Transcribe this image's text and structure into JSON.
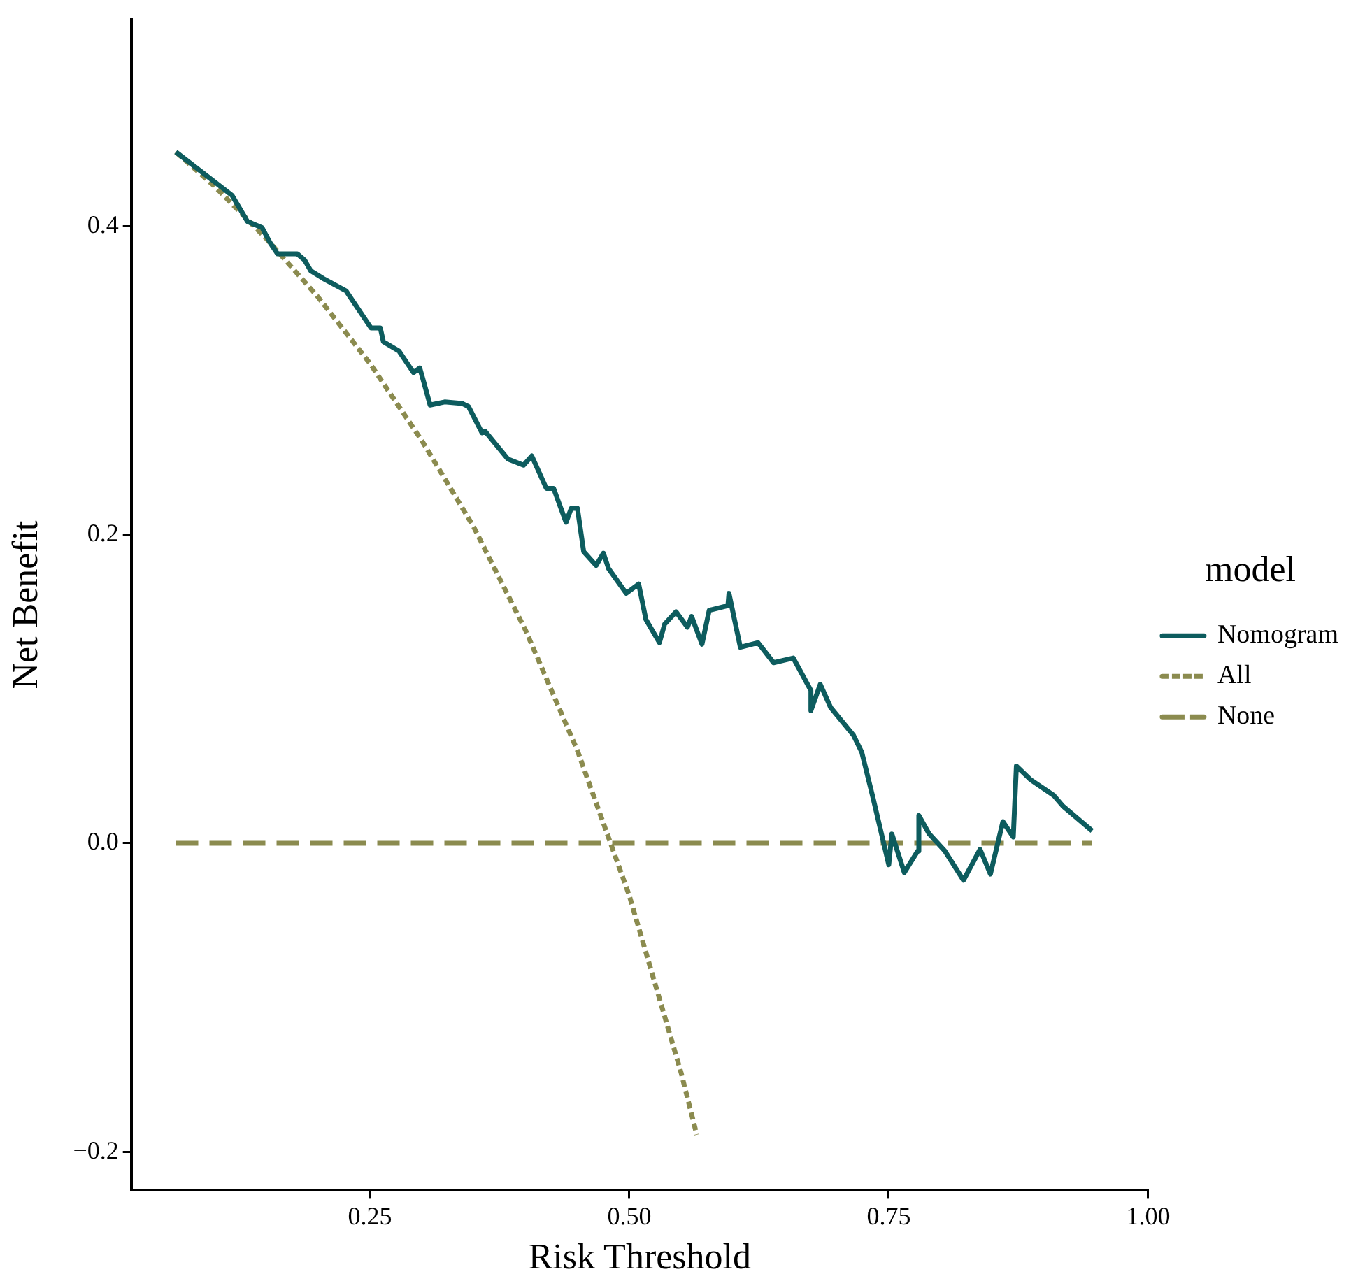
{
  "chart_data": {
    "type": "line",
    "xlabel": "Risk Threshold",
    "ylabel": "Net Benefit",
    "legend_title": "model",
    "legend": "right",
    "grid": false,
    "marker": "none",
    "xlim": [
      0.02,
      1.0
    ],
    "ylim": [
      -0.225,
      0.534
    ],
    "xticks": [
      {
        "value": 0.25,
        "label": "0.25"
      },
      {
        "value": 0.5,
        "label": "0.50"
      },
      {
        "value": 0.75,
        "label": "0.75"
      },
      {
        "value": 1.0,
        "label": "1.00"
      }
    ],
    "yticks": [
      {
        "value": -0.2,
        "label": "−0.2"
      },
      {
        "value": 0,
        "label": "0.0"
      },
      {
        "value": 0.2,
        "label": "0.2"
      },
      {
        "value": 0.4,
        "label": "0.4"
      }
    ],
    "series": [
      {
        "name": "Nomogram",
        "color": "#0d5c5e",
        "line_style": "solid",
        "x": [
          0.063,
          0.117,
          0.132,
          0.146,
          0.154,
          0.161,
          0.18,
          0.187,
          0.193,
          0.205,
          0.227,
          0.251,
          0.26,
          0.263,
          0.278,
          0.292,
          0.298,
          0.301,
          0.308,
          0.322,
          0.339,
          0.345,
          0.358,
          0.361,
          0.383,
          0.398,
          0.406,
          0.42,
          0.427,
          0.439,
          0.444,
          0.45,
          0.456,
          0.468,
          0.475,
          0.48,
          0.497,
          0.509,
          0.516,
          0.529,
          0.534,
          0.545,
          0.556,
          0.56,
          0.57,
          0.577,
          0.595,
          0.596,
          0.607,
          0.624,
          0.639,
          0.658,
          0.675,
          0.675,
          0.684,
          0.694,
          0.716,
          0.724,
          0.735,
          0.75,
          0.753,
          0.765,
          0.778,
          0.779,
          0.789,
          0.804,
          0.822,
          0.838,
          0.848,
          0.86,
          0.87,
          0.873,
          0.887,
          0.909,
          0.918,
          0.946
        ],
        "values": [
          0.448,
          0.42,
          0.403,
          0.399,
          0.389,
          0.382,
          0.382,
          0.378,
          0.371,
          0.366,
          0.358,
          0.334,
          0.334,
          0.325,
          0.319,
          0.305,
          0.308,
          0.301,
          0.284,
          0.286,
          0.285,
          0.283,
          0.266,
          0.267,
          0.249,
          0.245,
          0.251,
          0.23,
          0.23,
          0.208,
          0.217,
          0.217,
          0.189,
          0.18,
          0.188,
          0.178,
          0.162,
          0.168,
          0.145,
          0.13,
          0.142,
          0.15,
          0.14,
          0.147,
          0.129,
          0.151,
          0.154,
          0.162,
          0.127,
          0.13,
          0.117,
          0.12,
          0.099,
          0.086,
          0.103,
          0.088,
          0.07,
          0.059,
          0.029,
          -0.014,
          0.006,
          -0.019,
          -0.005,
          0.018,
          0.006,
          -0.005,
          -0.024,
          -0.004,
          -0.02,
          0.014,
          0.004,
          0.05,
          0.041,
          0.031,
          0.024,
          0.008
        ]
      },
      {
        "name": "All",
        "color": "#8b8b4f",
        "line_style": "dotted",
        "x": [
          0.063,
          0.1,
          0.15,
          0.2,
          0.25,
          0.3,
          0.35,
          0.4,
          0.45,
          0.5,
          0.55,
          0.565
        ],
        "values": [
          0.448,
          0.426,
          0.392,
          0.354,
          0.311,
          0.261,
          0.205,
          0.138,
          0.06,
          -0.034,
          -0.149,
          -0.189
        ]
      },
      {
        "name": "None",
        "color": "#8b8b4f",
        "line_style": "dashed",
        "x": [
          0.063,
          0.946
        ],
        "values": [
          0,
          0
        ]
      }
    ]
  }
}
